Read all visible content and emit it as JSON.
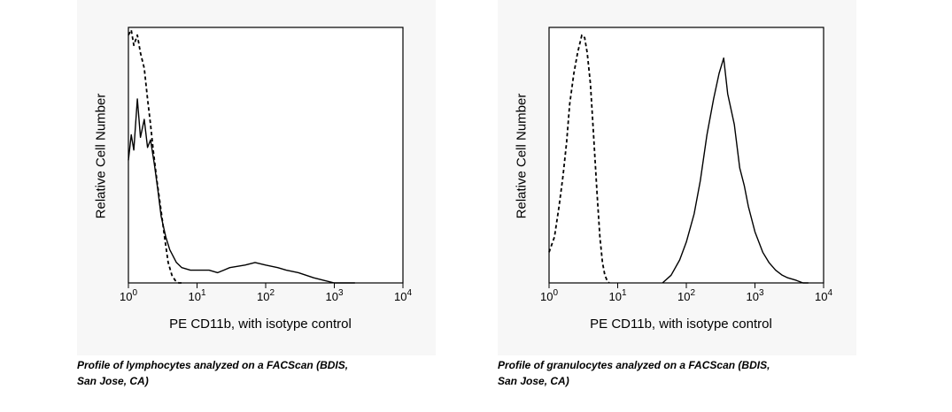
{
  "chart_data": [
    {
      "type": "line",
      "title": "",
      "xlabel": "PE CD11b, with isotype control",
      "ylabel": "Relative Cell Number",
      "xscale": "log",
      "xlim": [
        1,
        10000
      ],
      "ylim": [
        0,
        100
      ],
      "x_ticks": [
        1,
        10,
        100,
        1000,
        10000
      ],
      "x_tick_labels": [
        {
          "base": "10",
          "exp": "0"
        },
        {
          "base": "10",
          "exp": "1"
        },
        {
          "base": "10",
          "exp": "2"
        },
        {
          "base": "10",
          "exp": "3"
        },
        {
          "base": "10",
          "exp": "4"
        }
      ],
      "grid": false,
      "series": [
        {
          "style": "dashed",
          "color": "#000000",
          "x": [
            1.0,
            1.1,
            1.2,
            1.35,
            1.5,
            1.7,
            1.9,
            2.1,
            2.3,
            2.6,
            3.0,
            3.4,
            3.8,
            4.3,
            4.8,
            5.4,
            6.0
          ],
          "y": [
            97,
            99,
            93,
            97,
            90,
            84,
            72,
            62,
            52,
            40,
            28,
            17,
            8,
            3,
            1,
            0,
            0
          ]
        },
        {
          "style": "solid",
          "color": "#000000",
          "x": [
            1.0,
            1.1,
            1.2,
            1.35,
            1.5,
            1.7,
            1.9,
            2.1,
            2.4,
            2.7,
            3.0,
            3.5,
            4.0,
            5.0,
            6.0,
            8.0,
            10.0,
            15.0,
            20.0,
            30.0,
            50.0,
            70.0,
            100.0,
            150.0,
            200.0,
            300.0,
            500.0,
            700.0,
            1000.0,
            1500.0,
            2000.0
          ],
          "y": [
            48,
            58,
            52,
            72,
            57,
            64,
            53,
            56,
            46,
            36,
            26,
            18,
            13,
            8,
            6,
            5,
            5,
            5,
            4,
            6,
            7,
            8,
            7,
            6,
            5,
            4,
            2,
            1,
            0,
            0,
            0
          ]
        }
      ]
    },
    {
      "type": "line",
      "title": "",
      "xlabel": "PE CD11b, with isotype control",
      "ylabel": "Relative Cell Number",
      "xscale": "log",
      "xlim": [
        1,
        10000
      ],
      "ylim": [
        0,
        100
      ],
      "x_ticks": [
        1,
        10,
        100,
        1000,
        10000
      ],
      "x_tick_labels": [
        {
          "base": "10",
          "exp": "0"
        },
        {
          "base": "10",
          "exp": "1"
        },
        {
          "base": "10",
          "exp": "2"
        },
        {
          "base": "10",
          "exp": "3"
        },
        {
          "base": "10",
          "exp": "4"
        }
      ],
      "grid": false,
      "series": [
        {
          "style": "dashed",
          "color": "#000000",
          "x": [
            1.0,
            1.2,
            1.4,
            1.6,
            1.8,
            2.0,
            2.3,
            2.6,
            3.0,
            3.3,
            3.6,
            4.0,
            4.4,
            5.0,
            5.5,
            6.0,
            6.5,
            7.0,
            7.5
          ],
          "y": [
            12,
            18,
            30,
            42,
            55,
            70,
            82,
            90,
            97,
            96,
            90,
            78,
            60,
            35,
            18,
            8,
            3,
            1,
            0
          ]
        },
        {
          "style": "solid",
          "color": "#000000",
          "x": [
            45,
            60,
            80,
            100,
            130,
            160,
            200,
            250,
            300,
            350,
            400,
            500,
            600,
            700,
            800,
            1000,
            1300,
            1600,
            2000,
            2500,
            3000,
            4000,
            5000,
            6000
          ],
          "y": [
            0,
            3,
            9,
            16,
            27,
            40,
            58,
            72,
            82,
            88,
            74,
            62,
            45,
            38,
            30,
            20,
            12,
            8,
            5,
            3,
            2,
            1,
            0,
            0
          ]
        }
      ]
    }
  ],
  "captions": [
    {
      "line1": "Profile of lymphocytes analyzed on a FACScan (BDIS,",
      "line2": "San Jose, CA)"
    },
    {
      "line1": "Profile of granulocytes analyzed on a FACScan (BDIS,",
      "line2": "San Jose, CA)"
    }
  ]
}
